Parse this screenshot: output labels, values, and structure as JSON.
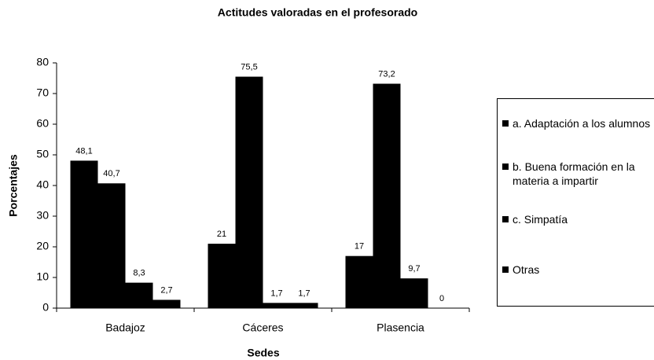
{
  "chart_data": {
    "type": "bar",
    "title": "Actitudes valoradas en el profesorado",
    "x_label": "Sedes",
    "y_label": "Porcentajes",
    "categories": [
      "Badajoz",
      "Cáceres",
      "Plasencia"
    ],
    "series": [
      {
        "name": "a. Adaptación a los alumnos",
        "color": "#000000",
        "values": [
          48.1,
          21,
          17
        ],
        "value_labels": [
          "48,1",
          "21",
          "17"
        ]
      },
      {
        "name": "b. Buena formación en la materia a impartir",
        "color": "#000000",
        "values": [
          40.7,
          75.5,
          73.2
        ],
        "value_labels": [
          "40,7",
          "75,5",
          "73,2"
        ]
      },
      {
        "name": "c. Simpatía",
        "color": "#000000",
        "values": [
          8.3,
          1.7,
          9.7
        ],
        "value_labels": [
          "8,3",
          "1,7",
          "9,7"
        ]
      },
      {
        "name": "Otras",
        "color": "#000000",
        "values": [
          2.7,
          1.7,
          0
        ],
        "value_labels": [
          "2,7",
          "1,7",
          "0"
        ]
      }
    ],
    "ylim": [
      0,
      80
    ],
    "yticks": [
      0,
      10,
      20,
      30,
      40,
      50,
      60,
      70,
      80
    ],
    "legend": "right"
  }
}
